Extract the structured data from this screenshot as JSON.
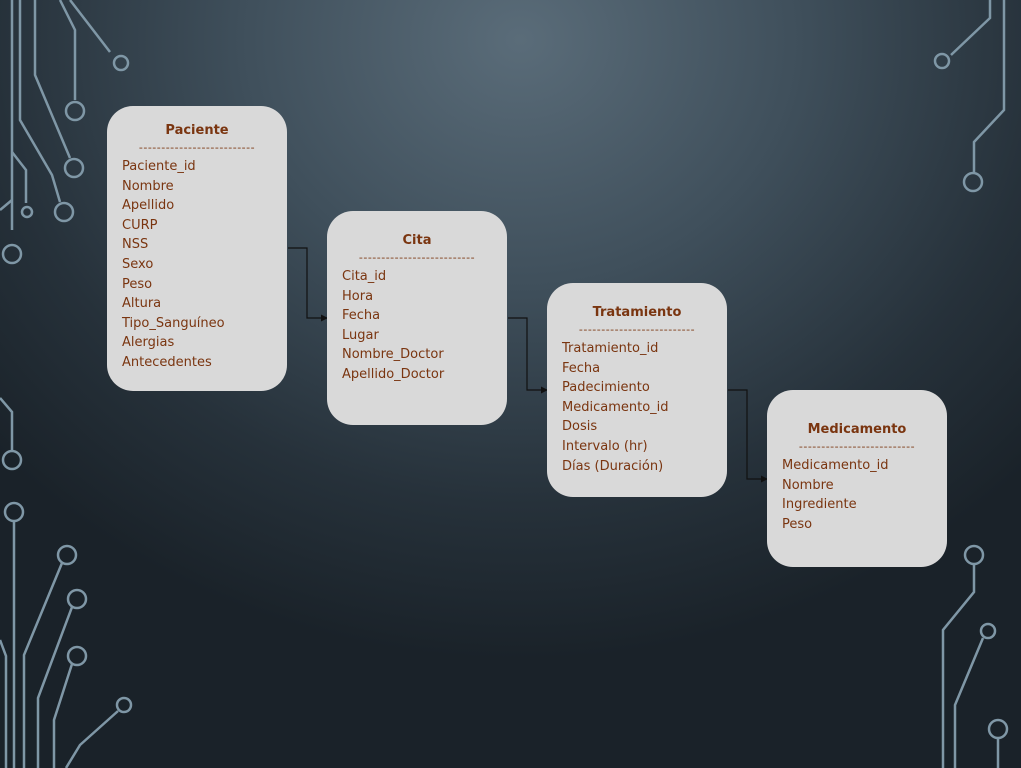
{
  "entities": {
    "paciente": {
      "title": "Paciente",
      "separator": "--------------------------",
      "fields": [
        "Paciente_id",
        "Nombre",
        "Apellido",
        "CURP",
        "NSS",
        "Sexo",
        "Peso",
        "Altura",
        "Tipo_Sanguíneo",
        "Alergias",
        "Antecedentes"
      ]
    },
    "cita": {
      "title": "Cita",
      "separator": "--------------------------",
      "fields": [
        "Cita_id",
        "Hora",
        "Fecha",
        "Lugar",
        "Nombre_Doctor",
        "Apellido_Doctor"
      ]
    },
    "tratamiento": {
      "title": "Tratamiento",
      "separator": "--------------------------",
      "fields": [
        "Tratamiento_id",
        "Fecha",
        "Padecimiento",
        "Medicamento_id",
        "Dosis",
        "Intervalo (hr)",
        "Días (Duración)"
      ]
    },
    "medicamento": {
      "title": "Medicamento",
      "separator": "--------------------------",
      "fields": [
        "Medicamento_id",
        "Nombre",
        "Ingrediente",
        "Peso"
      ]
    }
  },
  "colors": {
    "entity_fill": "#d9d9d9",
    "entity_text": "#7a3510",
    "connector": "#111111",
    "circuit": "#7f97a6"
  }
}
